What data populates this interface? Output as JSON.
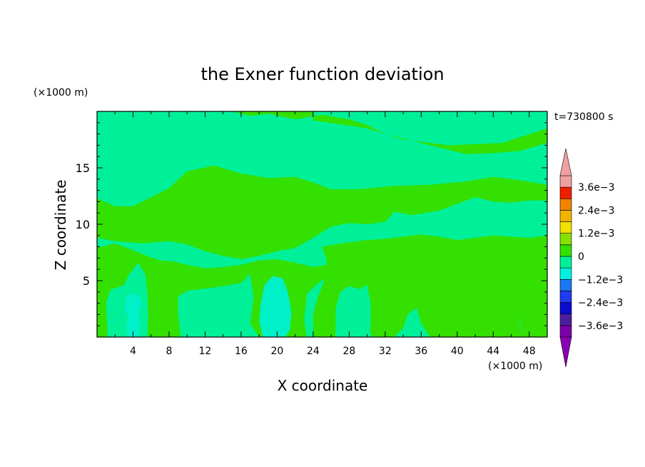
{
  "chart_data": {
    "type": "heatmap",
    "title": "the Exner function deviation",
    "xlabel": "X coordinate",
    "ylabel": "Z coordinate",
    "x_unit": "(×1000 m)",
    "y_unit": "(×1000 m)",
    "time_label": "t=730800 s",
    "xlim": [
      0,
      50
    ],
    "ylim": [
      0,
      20
    ],
    "x_ticks": [
      4,
      8,
      12,
      16,
      20,
      24,
      28,
      32,
      36,
      40,
      44,
      48
    ],
    "y_ticks": [
      5,
      10,
      15
    ],
    "colorbar": {
      "levels": [
        -0.0042,
        -0.0036,
        -0.003,
        -0.0024,
        -0.0018,
        -0.0012,
        -0.0006,
        0,
        0.0006,
        0.0012,
        0.0018,
        0.0024,
        0.003,
        0.0036,
        0.0042
      ],
      "labeled": [
        {
          "value": 0.0036,
          "label": "3.6e−3"
        },
        {
          "value": 0.0024,
          "label": "2.4e−3"
        },
        {
          "value": 0.0012,
          "label": "1.2e−3"
        },
        {
          "value": 0,
          "label": "0"
        },
        {
          "value": -0.0012,
          "label": "−1.2e−3"
        },
        {
          "value": -0.0024,
          "label": "−2.4e−3"
        },
        {
          "value": -0.0036,
          "label": "−3.6e−3"
        }
      ],
      "colors_low_to_high": [
        "#7a00aa",
        "#4b1fa0",
        "#2a0fa0",
        "#0a0ad0",
        "#1f3cf0",
        "#1a78f0",
        "#17b4f5",
        "#00f0e0",
        "#00f09a",
        "#33e000",
        "#88e000",
        "#c8e000",
        "#f0e000",
        "#f0b400",
        "#f08400",
        "#f04a00",
        "#f01e00",
        "#f0a0a0"
      ],
      "under_color": "#8c00b4",
      "over_color": "#f0a0a0"
    },
    "field_colors": {
      "band_minus_1_2e3_to_minus_0_6e3": "#00f0c8",
      "band_minus_0_6e3_to_0": "#00f09a",
      "band_0_to_0_6e3": "#33e000"
    },
    "regions": [
      {
        "band": "0_to_0.6e-3",
        "description": "upper green band",
        "polygon_xz": [
          [
            15,
            20
          ],
          [
            24,
            20
          ],
          [
            24,
            19.2
          ],
          [
            30,
            18.5
          ],
          [
            34,
            17.5
          ],
          [
            39,
            17
          ],
          [
            45,
            17.2
          ],
          [
            50,
            18.5
          ],
          [
            50,
            13.5
          ],
          [
            47,
            13.9
          ],
          [
            44,
            14.2
          ],
          [
            41,
            13.8
          ],
          [
            37,
            13.5
          ],
          [
            33,
            13.4
          ],
          [
            29,
            13.1
          ],
          [
            26,
            13.1
          ],
          [
            24,
            13.7
          ],
          [
            22,
            14.2
          ],
          [
            19,
            14.1
          ],
          [
            16,
            14.5
          ],
          [
            13,
            15.2
          ],
          [
            10,
            14.7
          ],
          [
            8,
            13.2
          ],
          [
            6,
            12.4
          ],
          [
            4,
            11.6
          ],
          [
            2,
            11.6
          ],
          [
            0,
            12.3
          ],
          [
            0,
            8.8
          ],
          [
            2,
            8.5
          ],
          [
            5,
            8.3
          ],
          [
            8,
            8.5
          ],
          [
            10,
            8.2
          ],
          [
            12,
            7.6
          ],
          [
            14,
            7.2
          ],
          [
            16,
            6.9
          ],
          [
            18,
            7.2
          ],
          [
            20,
            7.6
          ],
          [
            22,
            7.9
          ],
          [
            24,
            8.8
          ],
          [
            26,
            9.8
          ],
          [
            28,
            10.1
          ],
          [
            30,
            10
          ],
          [
            32,
            10.2
          ],
          [
            33,
            11.1
          ],
          [
            35,
            10.8
          ],
          [
            38,
            11.2
          ],
          [
            40,
            11.8
          ],
          [
            42,
            12.4
          ],
          [
            44,
            12
          ],
          [
            46,
            11.9
          ],
          [
            48,
            12.1
          ],
          [
            50,
            12.1
          ],
          [
            50,
            17.2
          ],
          [
            47,
            16.5
          ],
          [
            44,
            16.3
          ],
          [
            41,
            16.2
          ],
          [
            38,
            16.8
          ],
          [
            35,
            17.4
          ],
          [
            32,
            18
          ],
          [
            30,
            18.8
          ],
          [
            28,
            19.3
          ],
          [
            25,
            19.7
          ],
          [
            22,
            19.3
          ],
          [
            19,
            19.8
          ],
          [
            17,
            19.6
          ]
        ]
      },
      {
        "band": "0_to_0.6e-3",
        "description": "lower-left green columns",
        "polygon_xz": [
          [
            0.5,
            8
          ],
          [
            2,
            8.3
          ],
          [
            4,
            7.7
          ],
          [
            5.5,
            7.2
          ],
          [
            7,
            6.8
          ],
          [
            8.5,
            6.7
          ],
          [
            10,
            6.4
          ],
          [
            12,
            6.1
          ],
          [
            14,
            6.2
          ],
          [
            16,
            6.4
          ],
          [
            18,
            6.8
          ],
          [
            20,
            6.9
          ],
          [
            22,
            6.6
          ],
          [
            24,
            6.2
          ],
          [
            25.5,
            6.4
          ],
          [
            26,
            5.6
          ],
          [
            24.3,
            4.6
          ],
          [
            23.3,
            3.8
          ],
          [
            23,
            1.5
          ],
          [
            23.3,
            0
          ],
          [
            18,
            0
          ],
          [
            17,
            1.2
          ],
          [
            17.4,
            3.5
          ],
          [
            17,
            5.6
          ],
          [
            16,
            4.8
          ],
          [
            14,
            4.5
          ],
          [
            12,
            4.3
          ],
          [
            10,
            4.1
          ],
          [
            9,
            3.6
          ],
          [
            9,
            2
          ],
          [
            9.3,
            0
          ],
          [
            5.6,
            0
          ],
          [
            5.7,
            2
          ],
          [
            5.6,
            3.8
          ],
          [
            5.4,
            5.5
          ],
          [
            4.6,
            6.6
          ],
          [
            3.5,
            5.5
          ],
          [
            3,
            4.6
          ],
          [
            1.5,
            4.2
          ],
          [
            1,
            3
          ],
          [
            1.2,
            0
          ],
          [
            0,
            0
          ],
          [
            0,
            8
          ]
        ]
      },
      {
        "band": "0_to_0.6e-3",
        "description": "lower-right green area",
        "polygon_xz": [
          [
            25,
            8
          ],
          [
            26.3,
            8.2
          ],
          [
            28,
            8.4
          ],
          [
            30,
            8.6
          ],
          [
            32,
            8.7
          ],
          [
            34,
            8.9
          ],
          [
            36,
            9.1
          ],
          [
            38,
            8.9
          ],
          [
            40,
            8.6
          ],
          [
            42,
            8.8
          ],
          [
            44,
            9
          ],
          [
            46,
            8.9
          ],
          [
            48,
            8.8
          ],
          [
            50,
            9
          ],
          [
            50,
            0
          ],
          [
            47.5,
            0
          ],
          [
            47,
            1.2
          ],
          [
            46.5,
            2.2
          ],
          [
            45.5,
            2
          ],
          [
            45,
            1
          ],
          [
            44.5,
            0
          ],
          [
            37,
            0
          ],
          [
            36,
            1.2
          ],
          [
            35.5,
            2.6
          ],
          [
            34.5,
            2
          ],
          [
            34,
            0.8
          ],
          [
            33,
            0
          ],
          [
            30.5,
            0
          ],
          [
            30,
            2
          ],
          [
            29.5,
            3.4
          ],
          [
            29,
            4.3
          ],
          [
            28,
            4.5
          ],
          [
            27,
            4
          ],
          [
            26.5,
            2.5
          ],
          [
            26.5,
            0
          ],
          [
            24,
            0
          ],
          [
            24,
            2
          ],
          [
            24.5,
            3.5
          ],
          [
            25,
            4.5
          ],
          [
            25.5,
            5.6
          ],
          [
            25.5,
            6.8
          ]
        ]
      },
      {
        "band": "0_to_0.6e-3",
        "description": "right lower blob",
        "polygon_xz": [
          [
            37,
            0.8
          ],
          [
            38.5,
            1.3
          ],
          [
            40,
            1.8
          ],
          [
            41.3,
            2.5
          ],
          [
            42.5,
            3.6
          ],
          [
            43.5,
            4.9
          ],
          [
            45,
            5.6
          ],
          [
            46.5,
            5.8
          ],
          [
            46.7,
            4.3
          ],
          [
            46,
            3.2
          ],
          [
            46.5,
            2.2
          ],
          [
            47,
            1
          ],
          [
            47.5,
            0
          ],
          [
            37,
            0
          ]
        ]
      },
      {
        "band": "minus_0.6e-3_to_0",
        "description": "lower cyan-green patches",
        "polygon_xz": [
          [
            28.2,
            0
          ],
          [
            28,
            1.8
          ],
          [
            28.2,
            3.2
          ],
          [
            29.2,
            4.3
          ],
          [
            30,
            4.6
          ],
          [
            30.4,
            3
          ],
          [
            30.4,
            1
          ],
          [
            30,
            0
          ]
        ]
      },
      {
        "band": "minus_1.2e-3_to_minus_0.6e-3",
        "description": "cyan column near x=20",
        "polygon_xz": [
          [
            18.4,
            0
          ],
          [
            18,
            1.5
          ],
          [
            18.2,
            3
          ],
          [
            18.6,
            4.6
          ],
          [
            19.5,
            5.4
          ],
          [
            20.6,
            5.2
          ],
          [
            21.2,
            4
          ],
          [
            21.6,
            2.2
          ],
          [
            21.4,
            0.6
          ],
          [
            20.9,
            0
          ]
        ]
      },
      {
        "band": "minus_1.2e-3_to_minus_0.6e-3",
        "description": "cyan blob near x=4",
        "polygon_xz": [
          [
            3.4,
            0
          ],
          [
            3.2,
            0.8
          ],
          [
            3.5,
            1.7
          ],
          [
            3.1,
            2.4
          ],
          [
            3.1,
            3.4
          ],
          [
            3.8,
            3.9
          ],
          [
            4.7,
            3.7
          ],
          [
            5,
            3
          ],
          [
            4.6,
            2.2
          ],
          [
            4.8,
            1.3
          ],
          [
            4.6,
            0
          ]
        ]
      }
    ]
  }
}
